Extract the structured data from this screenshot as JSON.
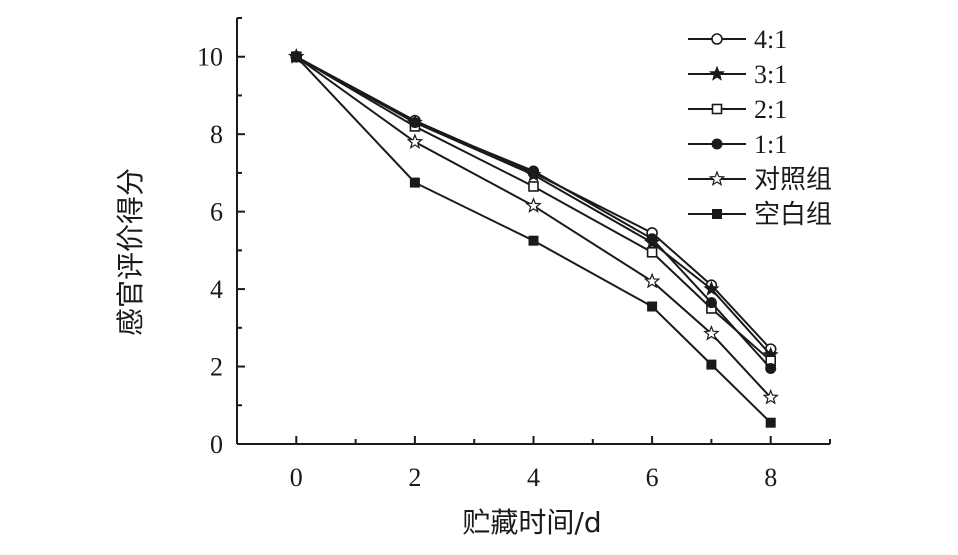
{
  "chart_data": {
    "type": "line",
    "title": "",
    "xlabel": "贮藏时间/d",
    "ylabel": "感官评价得分",
    "xlim": [
      -1,
      9
    ],
    "ylim": [
      0,
      11
    ],
    "x_ticks": [
      "0",
      "2",
      "4",
      "6",
      "8"
    ],
    "y_ticks": [
      "0",
      "2",
      "4",
      "6",
      "8",
      "10"
    ],
    "grid": false,
    "legend_position": "top-right",
    "x": [
      0,
      2,
      4,
      6,
      7,
      8
    ],
    "series": [
      {
        "name": "4:1",
        "marker": "open-circle",
        "values": [
          10.0,
          8.35,
          7.0,
          5.45,
          4.1,
          2.45
        ]
      },
      {
        "name": "3:1",
        "marker": "filled-star",
        "values": [
          10.0,
          8.3,
          6.95,
          5.2,
          4.0,
          2.3
        ]
      },
      {
        "name": "2:1",
        "marker": "open-square",
        "values": [
          10.0,
          8.2,
          6.65,
          4.95,
          3.5,
          2.15
        ]
      },
      {
        "name": "1:1",
        "marker": "filled-circle",
        "values": [
          10.0,
          8.3,
          7.05,
          5.3,
          3.65,
          1.95
        ]
      },
      {
        "name": "对照组",
        "marker": "open-star",
        "values": [
          10.0,
          7.8,
          6.15,
          4.2,
          2.85,
          1.2
        ]
      },
      {
        "name": "空白组",
        "marker": "filled-square",
        "values": [
          10.0,
          6.75,
          5.25,
          3.55,
          2.05,
          0.55
        ]
      }
    ],
    "colors": {
      "line": "#1a1a1a",
      "background": "#ffffff"
    }
  }
}
